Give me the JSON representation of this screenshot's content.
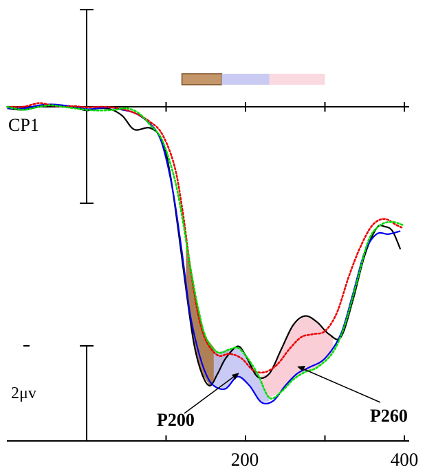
{
  "chart_data": {
    "type": "line",
    "channel_label": "CP1",
    "scale_label": "2μv",
    "x_tick_labels": [
      {
        "x": 200,
        "label": "200"
      },
      {
        "x": 400,
        "label": "400"
      }
    ],
    "x_ticks": [
      0,
      100,
      200,
      300,
      400
    ],
    "xlim": [
      -100,
      410
    ],
    "y_scale_bar_uv": 2,
    "polarity": "negative up",
    "analysis_windows": [
      {
        "from": 120,
        "to": 170,
        "color": "#c4976a"
      },
      {
        "from": 170,
        "to": 230,
        "color": "#c9cbf3"
      },
      {
        "from": 230,
        "to": 300,
        "color": "#fbd9e0"
      }
    ],
    "shaded_differences": [
      {
        "from": 125,
        "to": 185,
        "upper": "black",
        "lower": "green",
        "color": "#a06a38"
      },
      {
        "from": 160,
        "to": 230,
        "upper": "green",
        "lower": "blue",
        "color": "#c0c2f3"
      },
      {
        "from": 220,
        "to": 310,
        "upper": "black",
        "lower": "green",
        "color": "#f8c6cf"
      }
    ],
    "annotations": [
      {
        "label": "P200",
        "x": 200
      },
      {
        "label": "P260",
        "x": 262
      }
    ],
    "series": [
      {
        "color": "#000000",
        "style": "solid",
        "points": [
          [
            -100,
            -0.05
          ],
          [
            -80,
            -0.1
          ],
          [
            -60,
            0
          ],
          [
            -40,
            0.05
          ],
          [
            -20,
            0
          ],
          [
            0,
            -0.12
          ],
          [
            15,
            -0.05
          ],
          [
            30,
            -0.08
          ],
          [
            45,
            -0.3
          ],
          [
            60,
            -0.75
          ],
          [
            80,
            -0.7
          ],
          [
            95,
            -1.1
          ],
          [
            105,
            -2.2
          ],
          [
            115,
            -4.0
          ],
          [
            125,
            -6.0
          ],
          [
            135,
            -7.8
          ],
          [
            145,
            -8.8
          ],
          [
            155,
            -9.2
          ],
          [
            165,
            -8.8
          ],
          [
            175,
            -8.3
          ],
          [
            190,
            -7.9
          ],
          [
            200,
            -8.2
          ],
          [
            215,
            -8.9
          ],
          [
            230,
            -8.8
          ],
          [
            245,
            -8.0
          ],
          [
            260,
            -7.2
          ],
          [
            275,
            -6.9
          ],
          [
            290,
            -7.1
          ],
          [
            305,
            -7.5
          ],
          [
            320,
            -7.6
          ],
          [
            335,
            -6.4
          ],
          [
            350,
            -4.9
          ],
          [
            365,
            -4.0
          ],
          [
            375,
            -3.95
          ],
          [
            385,
            -4.1
          ],
          [
            395,
            -4.7
          ]
        ]
      },
      {
        "color": "#0000ee",
        "style": "solid",
        "points": [
          [
            -100,
            -0.05
          ],
          [
            -80,
            -0.05
          ],
          [
            -60,
            0.05
          ],
          [
            -45,
            0.08
          ],
          [
            -30,
            0.05
          ],
          [
            -15,
            0
          ],
          [
            0,
            -0.08
          ],
          [
            15,
            -0.05
          ],
          [
            30,
            -0.02
          ],
          [
            45,
            -0.1
          ],
          [
            60,
            -0.2
          ],
          [
            75,
            -0.45
          ],
          [
            90,
            -0.9
          ],
          [
            100,
            -1.7
          ],
          [
            110,
            -3.0
          ],
          [
            120,
            -4.8
          ],
          [
            130,
            -6.8
          ],
          [
            140,
            -8.0
          ],
          [
            150,
            -8.8
          ],
          [
            160,
            -9.2
          ],
          [
            175,
            -9.3
          ],
          [
            190,
            -8.9
          ],
          [
            205,
            -9.2
          ],
          [
            220,
            -9.75
          ],
          [
            235,
            -9.7
          ],
          [
            250,
            -9.2
          ],
          [
            265,
            -8.8
          ],
          [
            280,
            -8.6
          ],
          [
            300,
            -8.3
          ],
          [
            320,
            -7.5
          ],
          [
            335,
            -6.2
          ],
          [
            350,
            -4.8
          ],
          [
            365,
            -4.2
          ],
          [
            380,
            -4.2
          ],
          [
            395,
            -4.1
          ]
        ]
      },
      {
        "color": "#ee0000",
        "style": "dotted",
        "points": [
          [
            -100,
            0
          ],
          [
            -80,
            0
          ],
          [
            -60,
            0.12
          ],
          [
            -45,
            0.05
          ],
          [
            -30,
            0
          ],
          [
            -15,
            0.02
          ],
          [
            0,
            -0.02
          ],
          [
            20,
            0
          ],
          [
            40,
            -0.05
          ],
          [
            60,
            -0.2
          ],
          [
            80,
            -0.5
          ],
          [
            95,
            -0.9
          ],
          [
            110,
            -1.9
          ],
          [
            120,
            -3.3
          ],
          [
            130,
            -5.2
          ],
          [
            140,
            -6.8
          ],
          [
            150,
            -7.7
          ],
          [
            165,
            -8.2
          ],
          [
            180,
            -8.15
          ],
          [
            195,
            -8.3
          ],
          [
            210,
            -8.7
          ],
          [
            225,
            -8.75
          ],
          [
            240,
            -8.5
          ],
          [
            255,
            -8.0
          ],
          [
            270,
            -7.6
          ],
          [
            285,
            -7.5
          ],
          [
            300,
            -7.4
          ],
          [
            315,
            -6.8
          ],
          [
            330,
            -5.6
          ],
          [
            345,
            -4.6
          ],
          [
            360,
            -3.9
          ],
          [
            375,
            -3.7
          ],
          [
            390,
            -3.9
          ],
          [
            398,
            -4.0
          ]
        ]
      },
      {
        "color": "#00dd00",
        "style": "dotted",
        "points": [
          [
            -100,
            0
          ],
          [
            -80,
            -0.1
          ],
          [
            -60,
            0
          ],
          [
            -45,
            0.05
          ],
          [
            -30,
            0
          ],
          [
            -15,
            -0.05
          ],
          [
            0,
            -0.1
          ],
          [
            15,
            -0.12
          ],
          [
            35,
            -0.1
          ],
          [
            50,
            -0.05
          ],
          [
            65,
            -0.2
          ],
          [
            80,
            -0.6
          ],
          [
            95,
            -1.1
          ],
          [
            110,
            -2.3
          ],
          [
            120,
            -3.6
          ],
          [
            130,
            -5.2
          ],
          [
            140,
            -6.6
          ],
          [
            150,
            -7.6
          ],
          [
            165,
            -8.1
          ],
          [
            180,
            -8.0
          ],
          [
            190,
            -7.95
          ],
          [
            200,
            -8.2
          ],
          [
            215,
            -8.8
          ],
          [
            230,
            -9.6
          ],
          [
            245,
            -9.4
          ],
          [
            260,
            -9.0
          ],
          [
            275,
            -8.75
          ],
          [
            290,
            -8.6
          ],
          [
            310,
            -8.1
          ],
          [
            325,
            -7.2
          ],
          [
            340,
            -5.8
          ],
          [
            355,
            -4.4
          ],
          [
            370,
            -3.9
          ],
          [
            385,
            -3.8
          ],
          [
            398,
            -3.9
          ]
        ]
      }
    ]
  }
}
